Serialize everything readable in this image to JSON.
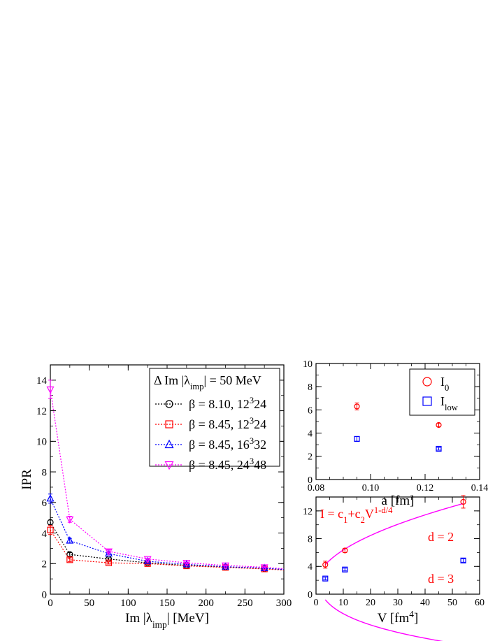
{
  "chart_data": [
    {
      "type": "line",
      "xlabel": "Im |λ",
      "xlabel_sub": "imp",
      "xlabel_tail": "|  [MeV]",
      "ylabel": "IPR",
      "xlim": [
        0,
        300
      ],
      "ylim": [
        0,
        15
      ],
      "xticks": [
        0,
        50,
        100,
        150,
        200,
        250,
        300
      ],
      "yticks": [
        0,
        2,
        4,
        6,
        8,
        10,
        12,
        14
      ],
      "xtick_labels": [
        "0",
        "50",
        "100",
        "150",
        "200",
        "250",
        "300"
      ],
      "ytick_labels": [
        "0",
        "2",
        "4",
        "6",
        "8",
        "10",
        "12",
        "14"
      ],
      "legend_title": "Δ Im |λ",
      "legend_title_sub": "imp",
      "legend_title_tail": "| = 50 MeV",
      "legend_position": "top-right",
      "x": [
        0,
        25,
        75,
        125,
        175,
        225,
        275,
        300
      ],
      "series": [
        {
          "name": "β = 8.10, 12³ 24",
          "name_base": "β = 8.10, 12",
          "name_sup": "3",
          "name_tail": "24",
          "color": "#000000",
          "marker": "circle",
          "values": [
            4.7,
            2.6,
            2.3,
            2.05,
            1.88,
            1.78,
            1.68,
            1.6
          ],
          "errors": [
            0.15,
            0.12,
            0.08,
            0.05,
            0.05,
            0.04,
            0.04,
            0
          ]
        },
        {
          "name": "β = 8.45, 12³ 24",
          "name_base": "β = 8.45, 12",
          "name_sup": "3",
          "name_tail": "24",
          "color": "#ff0000",
          "marker": "square",
          "values": [
            4.2,
            2.25,
            2.05,
            2.0,
            1.85,
            1.75,
            1.65,
            1.58
          ],
          "errors": [
            0.3,
            0.12,
            0.08,
            0.05,
            0.05,
            0.04,
            0.04,
            0
          ]
        },
        {
          "name": "β = 8.45, 16³ 32",
          "name_base": "β = 8.45, 16",
          "name_sup": "3",
          "name_tail": "32",
          "color": "#0000ff",
          "marker": "triangle-up",
          "values": [
            6.25,
            3.5,
            2.65,
            2.15,
            1.95,
            1.8,
            1.7,
            1.62
          ],
          "errors": [
            0.3,
            0.15,
            0.08,
            0.05,
            0.05,
            0.04,
            0.04,
            0
          ]
        },
        {
          "name": "β = 8.45, 24³ 48",
          "name_base": "β = 8.45, 24",
          "name_sup": "3",
          "name_tail": "48",
          "color": "#ff00ff",
          "marker": "triangle-down",
          "values": [
            13.4,
            4.9,
            2.8,
            2.3,
            2.05,
            1.88,
            1.76,
            1.66
          ],
          "errors": [
            0.6,
            0.2,
            0.1,
            0.06,
            0.05,
            0.04,
            0.04,
            0
          ]
        }
      ]
    },
    {
      "type": "scatter",
      "xlabel": "a  [fm]",
      "xlim": [
        0.08,
        0.14
      ],
      "ylim": [
        0,
        10
      ],
      "xticks": [
        0.08,
        0.1,
        0.12,
        0.14
      ],
      "yticks": [
        0,
        2,
        4,
        6,
        8,
        10
      ],
      "xtick_labels": [
        "0.08",
        "0.10",
        "0.12",
        "0.14"
      ],
      "ytick_labels": [
        "0",
        "2",
        "4",
        "6",
        "8",
        "10"
      ],
      "legend_position": "top-right",
      "series": [
        {
          "name_base": "I",
          "name_sub": "0",
          "color": "#ff0000",
          "marker": "circle",
          "x": [
            0.095,
            0.125
          ],
          "values": [
            6.3,
            4.7
          ],
          "errors": [
            0.3,
            0.15
          ]
        },
        {
          "name_base": "I",
          "name_sub": "low",
          "color": "#0000ff",
          "marker": "square",
          "x": [
            0.095,
            0.125
          ],
          "values": [
            3.5,
            2.65
          ],
          "errors": [
            0.2,
            0.12
          ]
        }
      ]
    },
    {
      "type": "scatter",
      "xlabel": "V   [fm",
      "xlabel_sup": "4",
      "xlabel_tail": "]",
      "xlim": [
        0,
        60
      ],
      "ylim": [
        0,
        14
      ],
      "xticks": [
        0,
        10,
        20,
        30,
        40,
        50,
        60
      ],
      "yticks": [
        0,
        4,
        8,
        12
      ],
      "xtick_labels": [
        "0",
        "10",
        "20",
        "30",
        "40",
        "50",
        "60"
      ],
      "ytick_labels": [
        "0",
        "4",
        "8",
        "12"
      ],
      "annotations": {
        "formula": "I = c1+c2V1-d/4",
        "formula_parts": {
          "a": "I = c",
          "s1": "1",
          "b": "+c",
          "s2": "2",
          "c": "V",
          "sup": "1-d/4"
        },
        "d2": "d = 2",
        "d3": "d = 3"
      },
      "series": [
        {
          "name": "d = 2",
          "color": "#ff0000",
          "marker": "circle",
          "x": [
            3.4,
            10.6,
            54
          ],
          "values": [
            4.25,
            6.3,
            13.3
          ],
          "errors": [
            0.5,
            0.3,
            0.9
          ],
          "fit": {
            "c1": 1.3,
            "c2": 1.6,
            "d": 2,
            "color": "#ff00ff"
          }
        },
        {
          "name": "d = 3",
          "color": "#0000ff",
          "marker": "square",
          "x": [
            3.4,
            10.6,
            54
          ],
          "values": [
            2.25,
            3.55,
            4.85
          ],
          "errors": [
            0.2,
            0.2,
            0.25
          ],
          "fit": {
            "c1": 5.72,
            "c2": -4.8,
            "d": 3,
            "color": "#ff00ff"
          }
        }
      ]
    }
  ]
}
